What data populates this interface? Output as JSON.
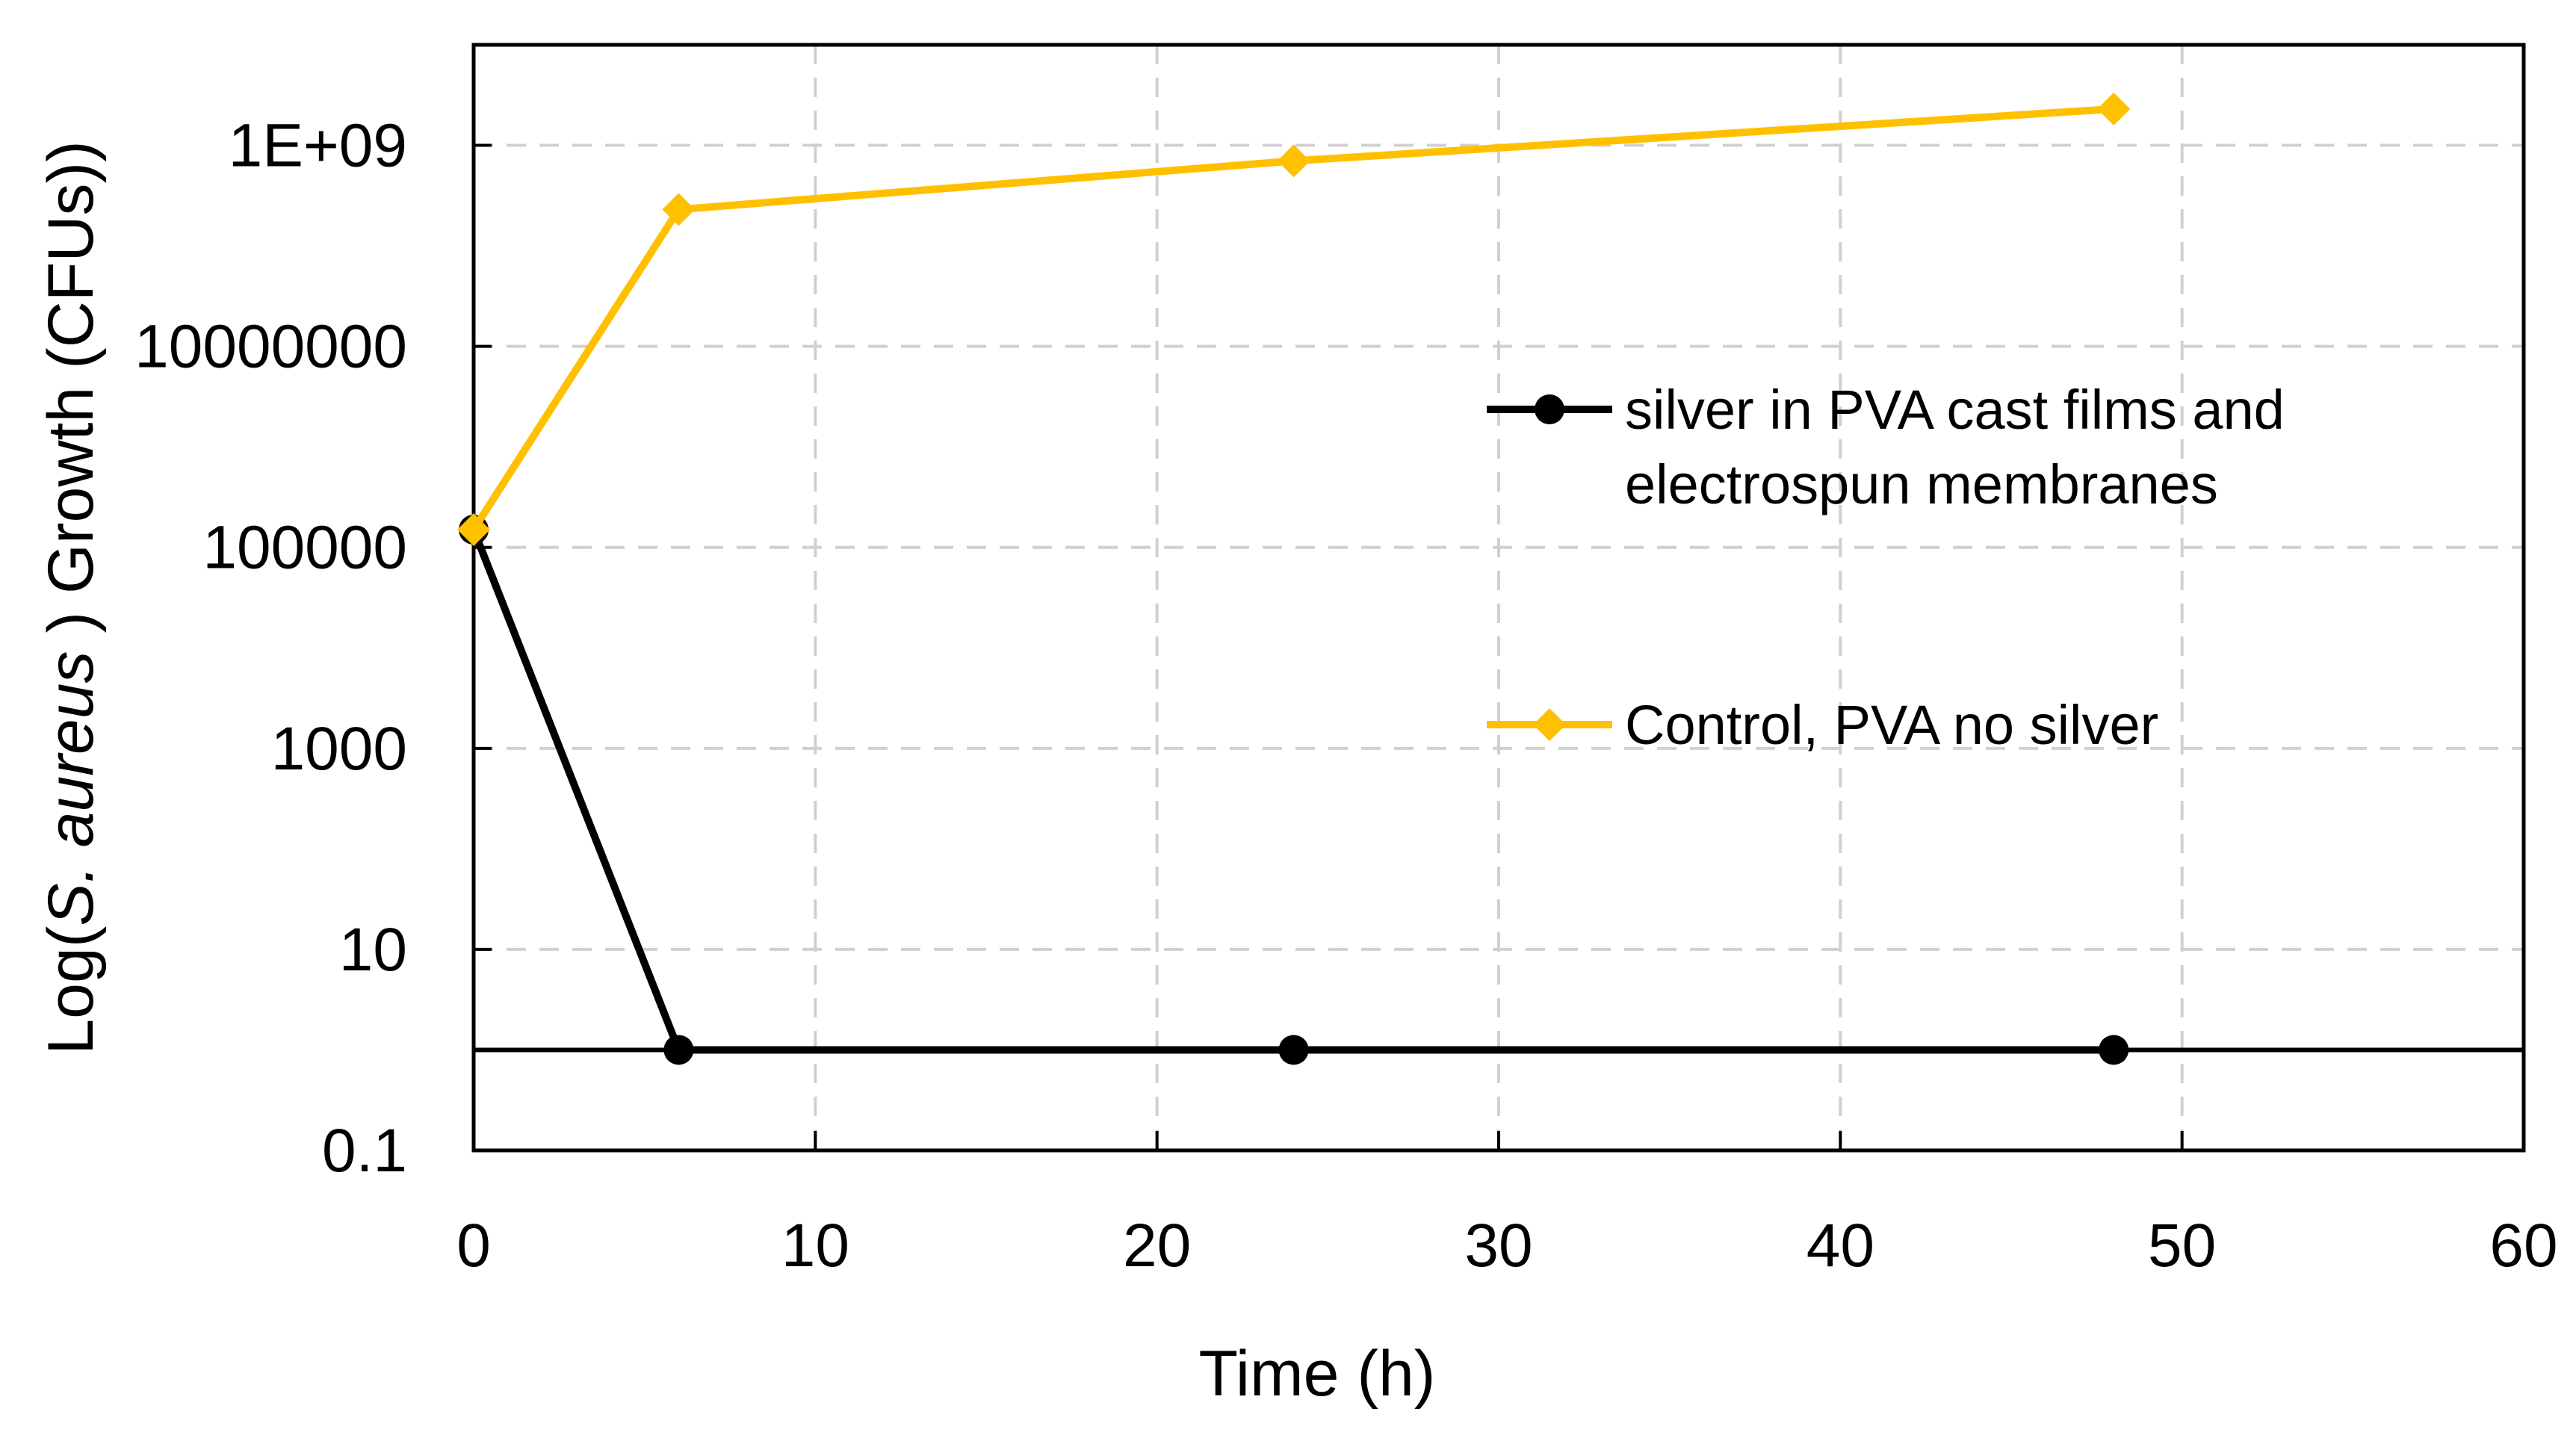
{
  "chart_data": {
    "type": "line",
    "title": "",
    "xlabel": "Time (h)",
    "ylabel": {
      "prefix": "Log(",
      "italic": "S. aureus",
      "suffix": " ) Growth (CFUs))"
    },
    "x_scale": "linear",
    "y_scale": "log",
    "xlim": [
      0,
      60
    ],
    "ylim": [
      0.1,
      10000000000
    ],
    "x_ticks": [
      0,
      10,
      20,
      30,
      40,
      50,
      60
    ],
    "x_tick_labels": [
      "0",
      "10",
      "20",
      "30",
      "40",
      "50",
      "60"
    ],
    "y_ticks": [
      0.1,
      10,
      1000,
      100000,
      10000000,
      1000000000
    ],
    "y_tick_labels": [
      "0.1",
      "10",
      "1000",
      "100000",
      "10000000",
      "1E+09"
    ],
    "grid": true,
    "baseline_value": 1,
    "legend_position": "right-center",
    "series": [
      {
        "name_lines": [
          "silver in PVA cast films and",
          "electrospun membranes"
        ],
        "marker": "circle",
        "color": "#000000",
        "x": [
          0,
          6,
          24,
          48
        ],
        "values": [
          150000,
          1,
          1,
          1
        ]
      },
      {
        "name_lines": [
          "Control, PVA no silver"
        ],
        "marker": "diamond",
        "color": "#FFC000",
        "x": [
          0,
          6,
          24,
          48
        ],
        "values": [
          150000,
          230000000,
          700000000,
          2300000000
        ]
      }
    ]
  }
}
